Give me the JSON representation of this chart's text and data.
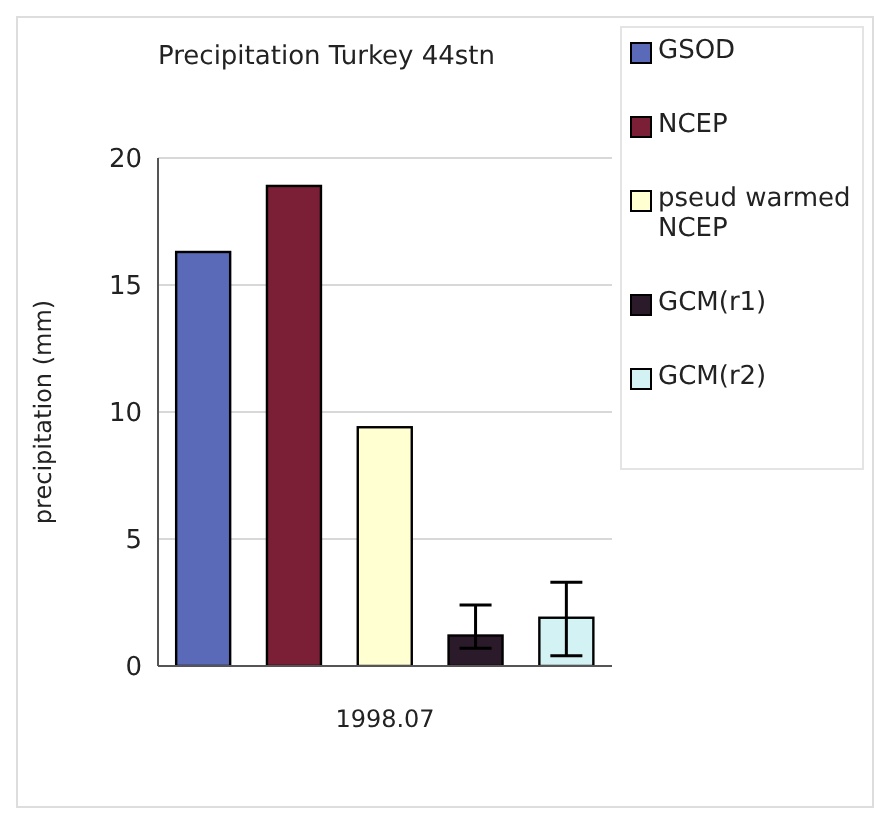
{
  "chart_data": {
    "type": "bar",
    "title": "Precipitation Turkey 44stn",
    "ylabel": "precipitation (mm)",
    "categories": [
      null,
      null,
      "1998.07",
      null,
      null
    ],
    "series": [
      {
        "name": "GSOD",
        "color": "#5a6ab8",
        "values": [
          16.3,
          null,
          null,
          null,
          null
        ]
      },
      {
        "name": "NCEP",
        "color": "#7a1f35",
        "values": [
          null,
          18.9,
          null,
          null,
          null
        ]
      },
      {
        "name": "pseud warmed NCEP",
        "color": "#ffffd2",
        "values": [
          null,
          null,
          9.4,
          null,
          null
        ]
      },
      {
        "name": "GCM(r1)",
        "color": "#2a1a2a",
        "values": [
          null,
          null,
          null,
          1.2,
          null
        ],
        "errors": [
          null,
          null,
          null,
          [
            0.7,
            2.4
          ],
          null
        ]
      },
      {
        "name": "GCM(r2)",
        "color": "#d2f2f4",
        "values": [
          null,
          null,
          null,
          null,
          1.9
        ],
        "errors": [
          null,
          null,
          null,
          null,
          [
            0.4,
            3.3
          ]
        ]
      }
    ],
    "ylim": [
      0,
      20
    ],
    "yticks": [
      0,
      5,
      10,
      15,
      20
    ],
    "grid": "y",
    "legend": "top right"
  }
}
